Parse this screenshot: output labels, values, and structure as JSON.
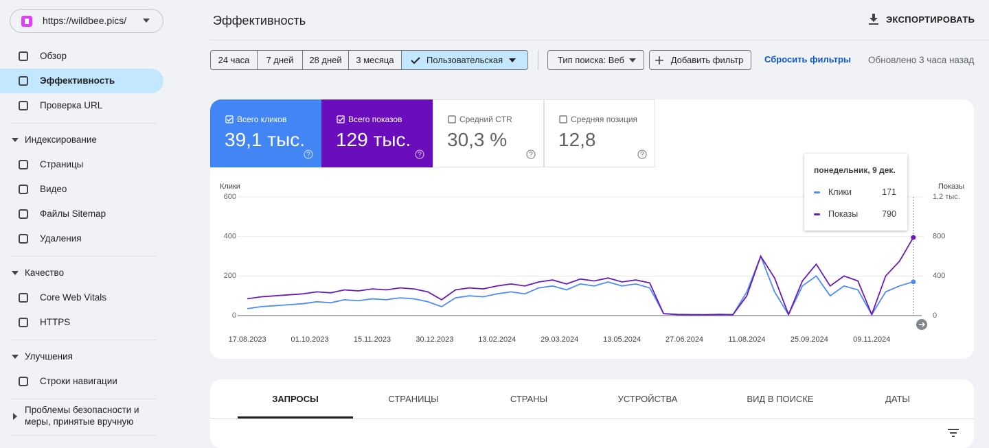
{
  "sidebar": {
    "property": "https://wildbee.pics/",
    "nav": [
      "Обзор",
      "Эффективность",
      "Проверка URL"
    ],
    "sections": [
      {
        "title": "Индексирование",
        "items": [
          "Страницы",
          "Видео",
          "Файлы Sitemap",
          "Удаления"
        ]
      },
      {
        "title": "Качество",
        "items": [
          "Core Web Vitals",
          "HTTPS"
        ]
      },
      {
        "title": "Улучшения",
        "items": [
          "Строки навигации"
        ]
      },
      {
        "title": "Проблемы безопасности и меры, принятые вручную"
      }
    ]
  },
  "header": {
    "title": "Эффективность",
    "export": "ЭКСПОРТИРОВАТЬ"
  },
  "filters": {
    "ranges": [
      "24 часа",
      "7 дней",
      "28 дней",
      "3 месяца",
      "Пользовательская"
    ],
    "search_type": "Тип поиска: Веб",
    "add_filter": "Добавить фильтр",
    "reset": "Сбросить фильтры",
    "updated": "Обновлено 3 часа назад"
  },
  "metrics": [
    {
      "label": "Всего кликов",
      "value": "39,1 тыс.",
      "checked": true,
      "color": "#4285f4"
    },
    {
      "label": "Всего показов",
      "value": "129 тыс.",
      "checked": true,
      "color": "#6a0dbd"
    },
    {
      "label": "Средний CTR",
      "value": "30,3 %",
      "checked": false
    },
    {
      "label": "Средняя позиция",
      "value": "12,8",
      "checked": false
    }
  ],
  "chart_data": {
    "type": "line",
    "ylabel": "Клики",
    "y2label": "Показы",
    "x": [
      "17.08.2023",
      "27.08.2023",
      "06.09.2023",
      "16.09.2023",
      "26.09.2023",
      "06.10.2023",
      "16.10.2023",
      "26.10.2023",
      "05.11.2023",
      "15.11.2023",
      "25.11.2023",
      "05.12.2023",
      "15.12.2023",
      "25.12.2023",
      "04.01.2024",
      "14.01.2024",
      "24.01.2024",
      "03.02.2024",
      "13.02.2024",
      "23.02.2024",
      "04.03.2024",
      "14.03.2024",
      "24.03.2024",
      "03.04.2024",
      "13.04.2024",
      "23.04.2024",
      "03.05.2024",
      "13.05.2024",
      "23.05.2024",
      "02.06.2024",
      "12.06.2024",
      "22.06.2024",
      "02.07.2024",
      "12.07.2024",
      "22.07.2024",
      "01.08.2024",
      "11.08.2024",
      "21.08.2024",
      "31.08.2024",
      "10.09.2024",
      "20.09.2024",
      "30.09.2024",
      "10.10.2024",
      "20.10.2024",
      "30.10.2024",
      "09.11.2024",
      "19.11.2024",
      "29.11.2024",
      "09.12.2024"
    ],
    "series": [
      {
        "name": "Клики",
        "color": "#4d8cf5",
        "values": [
          35,
          45,
          50,
          55,
          60,
          70,
          65,
          80,
          75,
          85,
          80,
          90,
          85,
          70,
          45,
          90,
          100,
          95,
          110,
          120,
          110,
          140,
          150,
          130,
          160,
          150,
          170,
          150,
          160,
          140,
          10,
          5,
          5,
          4,
          6,
          5,
          120,
          300,
          120,
          5,
          150,
          200,
          100,
          150,
          130,
          5,
          120,
          150,
          171
        ]
      },
      {
        "name": "Показы",
        "color": "#6a1bb5",
        "axis": "y2",
        "values": [
          170,
          190,
          200,
          210,
          220,
          240,
          230,
          260,
          250,
          270,
          260,
          280,
          270,
          240,
          160,
          260,
          280,
          270,
          300,
          320,
          300,
          340,
          360,
          320,
          370,
          350,
          380,
          340,
          360,
          330,
          20,
          12,
          10,
          8,
          12,
          10,
          200,
          600,
          380,
          12,
          350,
          520,
          300,
          400,
          350,
          12,
          400,
          550,
          790
        ]
      }
    ],
    "xlim": [
      "10.08.2023",
      "15.12.2024"
    ],
    "xticks": [
      "17.08.2023",
      "01.10.2023",
      "15.11.2023",
      "30.12.2023",
      "13.02.2024",
      "29.03.2024",
      "13.05.2024",
      "27.06.2024",
      "11.08.2024",
      "25.09.2024",
      "09.11.2024"
    ],
    "ylim": [
      0,
      600
    ],
    "yticks": [
      0,
      200,
      400,
      600
    ],
    "y2lim": [
      0,
      1200
    ],
    "y2ticks": [
      0,
      400,
      800,
      {
        "value": 1200,
        "label": "1,2 тыс."
      }
    ],
    "grid": true,
    "tooltip": {
      "title": "понедельник, 9 дек."
    }
  },
  "tabs": [
    "ЗАПРОСЫ",
    "СТРАНИЦЫ",
    "СТРАНЫ",
    "УСТРОЙСТВА",
    "ВИД В ПОИСКЕ",
    "ДАТЫ"
  ]
}
